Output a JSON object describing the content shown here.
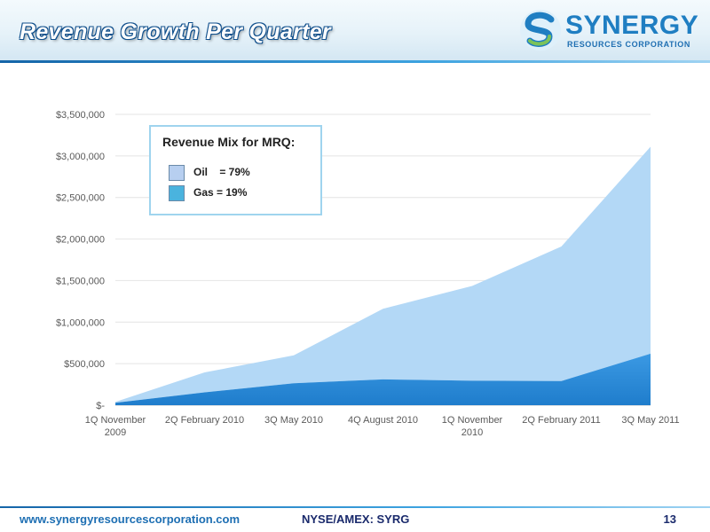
{
  "header": {
    "title": "Revenue Growth Per Quarter"
  },
  "logo": {
    "name": "SYNERGY",
    "subtitle": "RESOURCES CORPORATION"
  },
  "legend": {
    "title": "Revenue Mix for MRQ:",
    "items": [
      {
        "label": "Oil    = 79%",
        "color": "#b7cff0"
      },
      {
        "label": "Gas = 19%",
        "color": "#4ab3de"
      }
    ]
  },
  "chart_data": {
    "type": "area",
    "title": "",
    "xlabel": "",
    "ylabel": "",
    "categories": [
      "1Q November 2009",
      "2Q February 2010",
      "3Q May 2010",
      "4Q August 2010",
      "1Q November 2010",
      "2Q February 2011",
      "3Q May 2011"
    ],
    "y_ticks": [
      "$-",
      "$500,000",
      "$1,000,000",
      "$1,500,000",
      "$2,000,000",
      "$2,500,000",
      "$3,000,000",
      "$3,500,000"
    ],
    "ylim": [
      0,
      3500000
    ],
    "grid": true,
    "stacked": true,
    "series": [
      {
        "name": "",
        "color": "#2e8fdc",
        "values": [
          30000,
          155000,
          265000,
          310000,
          295000,
          290000,
          620000
        ]
      },
      {
        "name": "",
        "color": "#b3d8f6",
        "values": [
          10000,
          240000,
          335000,
          850000,
          1140000,
          1620000,
          2490000
        ]
      }
    ]
  },
  "footer": {
    "url": "www.synergyresourcescorporation.com",
    "ticker": "NYSE/AMEX: SYRG",
    "page": "13"
  }
}
